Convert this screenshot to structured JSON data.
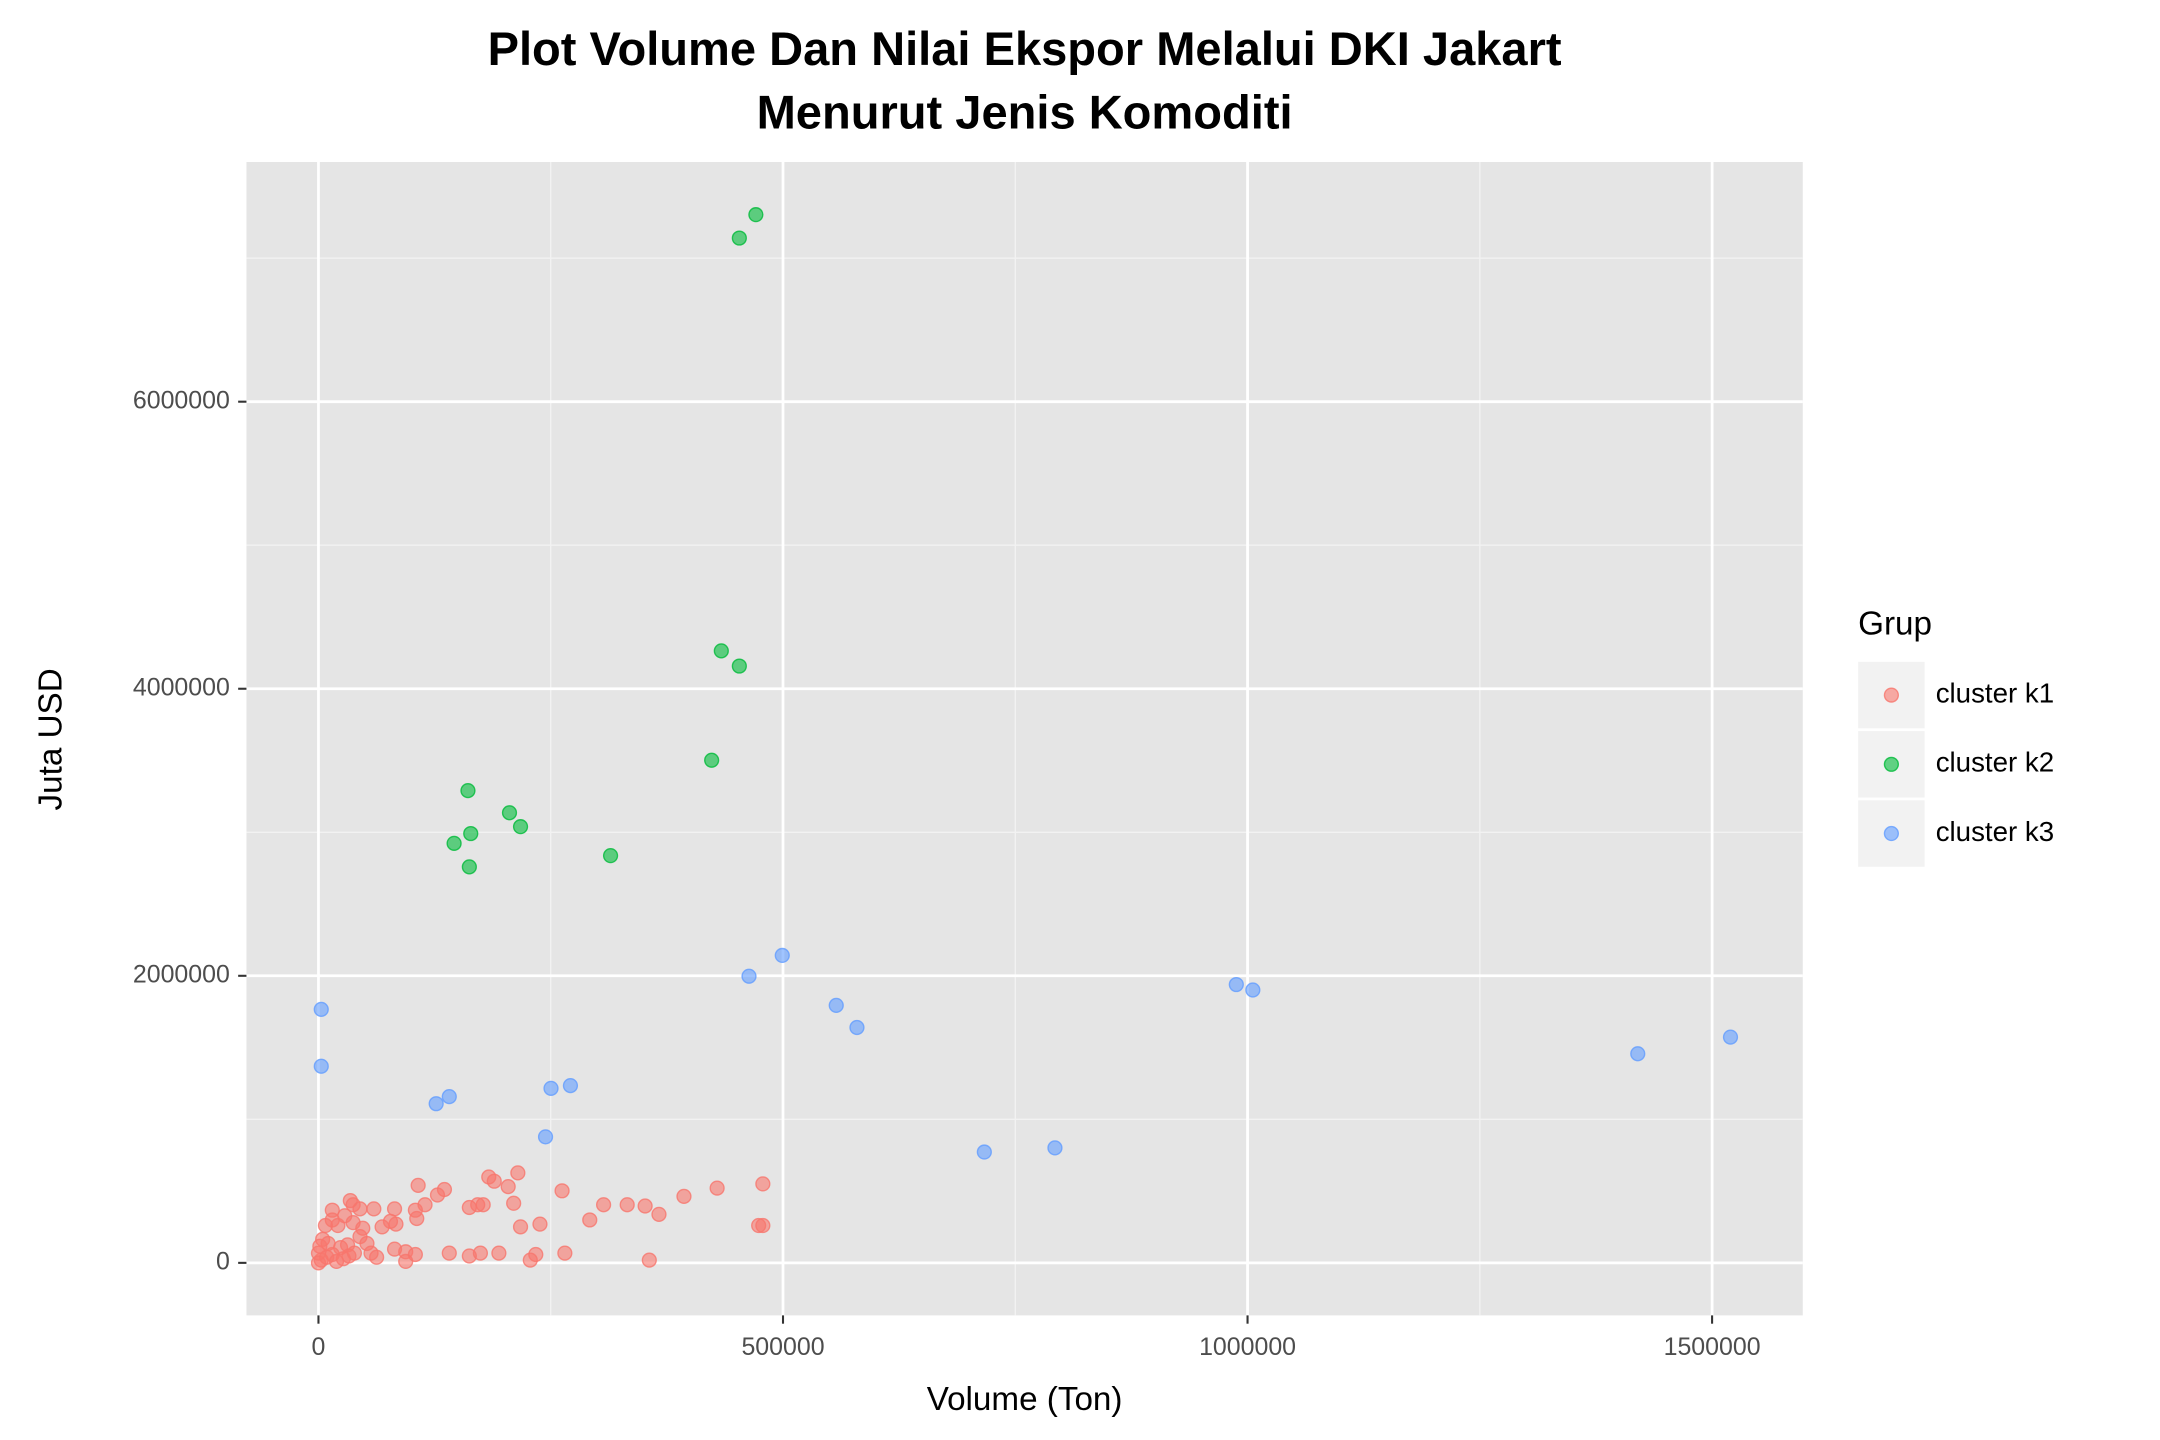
{
  "chart_data": {
    "type": "scatter",
    "title": [
      "Plot Volume Dan Nilai Ekspor Melalui DKI Jakart",
      "Menurut Jenis Komoditi"
    ],
    "x_label": "Volume (Ton)",
    "y_label": "Juta USD",
    "legend_title": "Grup",
    "legend_position": "right",
    "grid": true,
    "xlim": [
      -77500,
      1597600
    ],
    "ylim": [
      -366000,
      7670000
    ],
    "xticks": [
      0,
      500000,
      1000000,
      1500000
    ],
    "yticks": [
      0,
      2000000,
      4000000,
      6000000
    ],
    "series": [
      {
        "name": "cluster k1",
        "color": "#F8766D",
        "x": [
          478300,
          429100,
          393400,
          366500,
          351600,
          332300,
          306900,
          292000,
          262200,
          238400,
          214600,
          204200,
          210100,
          217500,
          183300,
          189200,
          177300,
          171400,
          162400,
          135600,
          128100,
          107300,
          114700,
          104300,
          105800,
          81900,
          83400,
          77500,
          59600,
          68500,
          47700,
          37300,
          44700,
          34300,
          14900,
          14900,
          7500,
          20900,
          28300,
          37300,
          44700,
          4500,
          10400,
          23800,
          31300,
          52200,
          81900,
          93900,
          104300,
          140800,
          162400,
          174300,
          194200,
          233900,
          228000,
          265200,
          356100,
          93900,
          56600,
          62600,
          0,
          3000,
          8900,
          14900,
          19400,
          26800,
          32800,
          38700,
          0,
          1500,
          473800,
          478300
        ],
        "values": [
          550000,
          521000,
          463000,
          338000,
          396000,
          405000,
          405000,
          299000,
          502000,
          270000,
          627000,
          531000,
          415000,
          251000,
          598000,
          569000,
          405000,
          405000,
          386000,
          511000,
          473000,
          540000,
          405000,
          367000,
          309000,
          376000,
          270000,
          289000,
          376000,
          251000,
          241000,
          405000,
          376000,
          434000,
          367000,
          299000,
          260000,
          260000,
          328000,
          280000,
          183000,
          164000,
          135000,
          106000,
          125000,
          135000,
          96000,
          77000,
          58000,
          68000,
          48000,
          68000,
          68000,
          58000,
          19000,
          68000,
          19000,
          10000,
          68000,
          39000,
          0,
          19000,
          39000,
          58000,
          10000,
          29000,
          48000,
          68000,
          68000,
          116000,
          260000,
          260000
        ]
      },
      {
        "name": "cluster k2",
        "color": "#00BA38",
        "x": [
          470800,
          453000,
          433600,
          453000,
          423200,
          160900,
          205600,
          163900,
          217500,
          146000,
          162400,
          314400
        ],
        "values": [
          7303000,
          7140000,
          4264000,
          4158000,
          3502000,
          3290000,
          3136000,
          2991000,
          3039000,
          2923000,
          2759000,
          2837000
        ]
      },
      {
        "name": "cluster k3",
        "color": "#619CFF",
        "x": [
          3000,
          3000,
          499200,
          463400,
          557300,
          579600,
          987900,
          1005700,
          1519800,
          1420000,
          126700,
          140800,
          250300,
          271200,
          244400,
          716700,
          792700
        ],
        "values": [
          1766000,
          1370000,
          2142000,
          1997000,
          1794000,
          1640000,
          1939000,
          1901000,
          1573000,
          1457000,
          1109000,
          1158000,
          1216000,
          1235000,
          878000,
          772000,
          801000
        ]
      }
    ]
  }
}
